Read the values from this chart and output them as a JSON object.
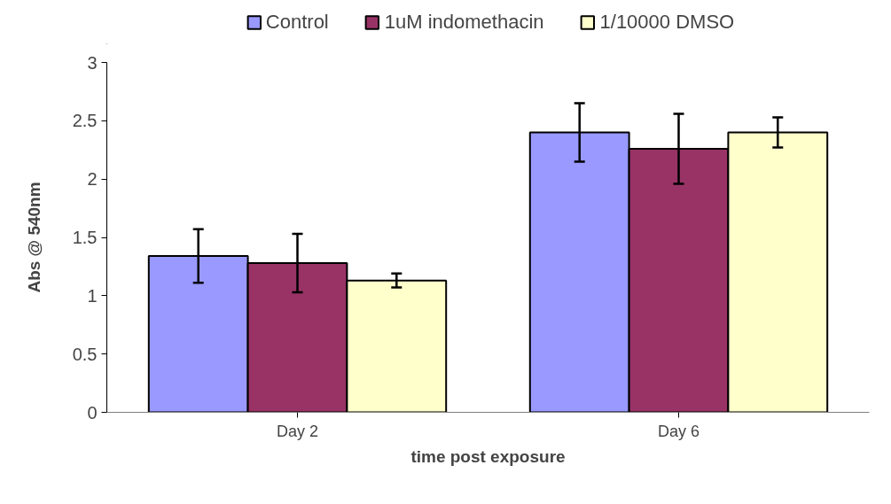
{
  "chart_data": {
    "type": "bar",
    "xlabel": "time post exposure",
    "ylabel": "Abs @ 540nm",
    "categories": [
      "Day 2",
      "Day 6"
    ],
    "series": [
      {
        "name": "Control",
        "color": "#9999ff",
        "values": [
          1.34,
          2.4
        ],
        "errors": [
          0.23,
          0.25
        ]
      },
      {
        "name": "1uM indomethacin",
        "color": "#993366",
        "values": [
          1.28,
          2.26
        ],
        "errors": [
          0.25,
          0.3
        ]
      },
      {
        "name": "1/10000 DMSO",
        "color": "#ffffcc",
        "values": [
          1.13,
          2.4
        ],
        "errors": [
          0.06,
          0.13
        ]
      }
    ],
    "ylim": [
      0,
      3
    ],
    "yticks": [
      0,
      0.5,
      1,
      1.5,
      2,
      2.5,
      3
    ],
    "grid": false,
    "legend": "top"
  }
}
